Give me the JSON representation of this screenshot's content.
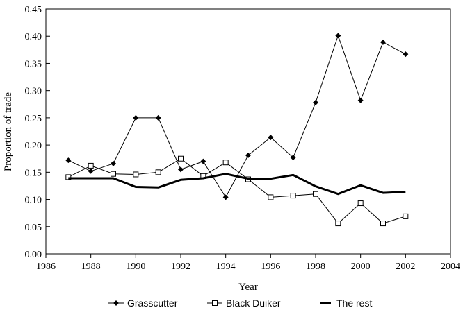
{
  "chart_data": {
    "type": "line",
    "xlabel": "Year",
    "ylabel": "Proportion of trade",
    "xlim": [
      1986,
      2004
    ],
    "ylim": [
      0,
      0.45
    ],
    "xticks": [
      "1986",
      "1988",
      "1990",
      "1992",
      "1994",
      "1996",
      "1998",
      "2000",
      "2002",
      "2004"
    ],
    "yticks": [
      "0.00",
      "0.05",
      "0.10",
      "0.15",
      "0.20",
      "0.25",
      "0.30",
      "0.35",
      "0.40",
      "0.45"
    ],
    "grid": false,
    "legend_position": "bottom",
    "x": [
      1987,
      1988,
      1989,
      1990,
      1991,
      1992,
      1993,
      1994,
      1995,
      1996,
      1997,
      1998,
      1999,
      2000,
      2001,
      2002
    ],
    "series": [
      {
        "name": "Grasscutter",
        "marker": "diamond",
        "values": [
          0.172,
          0.152,
          0.166,
          0.25,
          0.25,
          0.155,
          0.17,
          0.104,
          0.181,
          0.214,
          0.177,
          0.278,
          0.401,
          0.282,
          0.389,
          0.367
        ]
      },
      {
        "name": "Black Duiker",
        "marker": "open-square",
        "values": [
          0.141,
          0.162,
          0.147,
          0.146,
          0.15,
          0.175,
          0.143,
          0.168,
          0.137,
          0.104,
          0.107,
          0.11,
          0.056,
          0.093,
          0.056,
          0.069
        ]
      },
      {
        "name": "The rest",
        "marker": "none",
        "values": [
          0.139,
          0.139,
          0.139,
          0.123,
          0.122,
          0.136,
          0.139,
          0.147,
          0.138,
          0.138,
          0.145,
          0.124,
          0.11,
          0.126,
          0.112,
          0.114
        ]
      }
    ]
  }
}
